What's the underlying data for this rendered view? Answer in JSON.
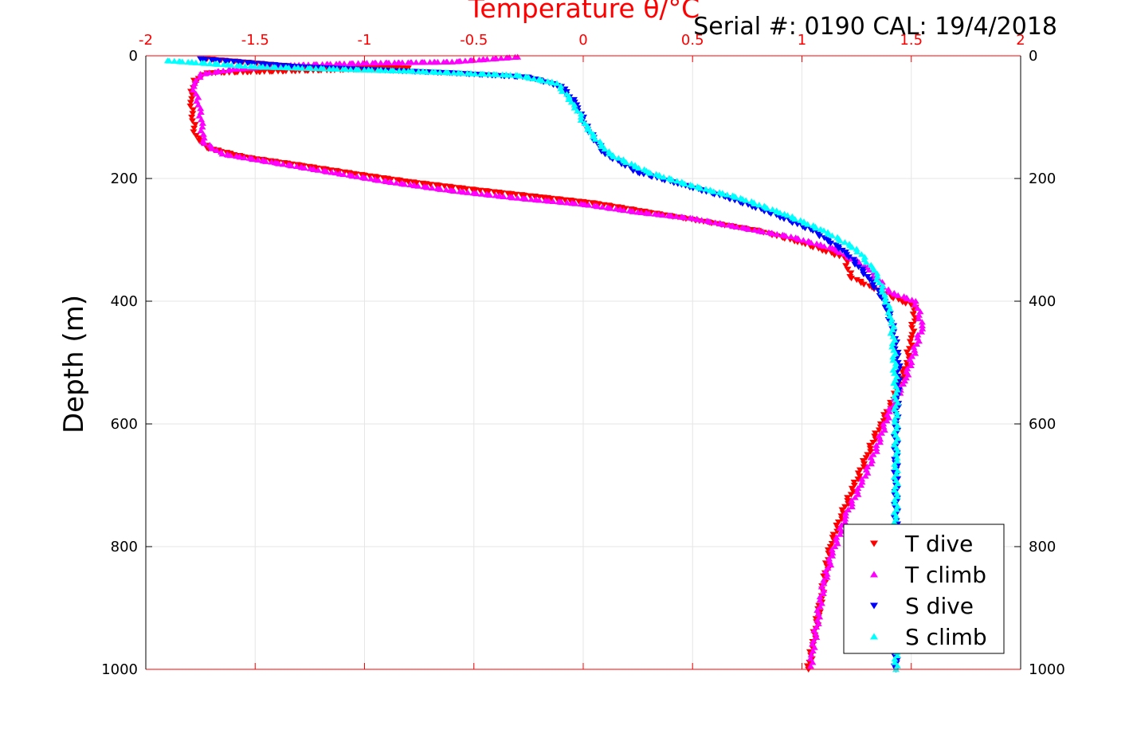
{
  "chart_data": {
    "type": "scatter",
    "title": "Serial #: 0190  CAL: 19/4/2018",
    "xlabel": "Temperature θ/°C",
    "ylabel": "Depth (m)",
    "xlim": [
      -2,
      2
    ],
    "ylim": [
      0,
      1000
    ],
    "y_reversed": true,
    "x_axis_position": "top",
    "grid": true,
    "legend_position": "bottom-right",
    "x_ticks": [
      "-2",
      "-1.5",
      "-1",
      "-0.5",
      "0",
      "0.5",
      "1",
      "1.5",
      "2"
    ],
    "y_ticks": [
      "0",
      "200",
      "400",
      "600",
      "800",
      "1000"
    ],
    "colors": {
      "x_axis": "#ff0000",
      "grid": "#e6e6e6"
    },
    "series": [
      {
        "name": "T dive",
        "marker": "triangle-down",
        "color": "#ff0000",
        "points": [
          [
            -1.72,
            5
          ],
          [
            -1.3,
            18
          ],
          [
            -0.8,
            20
          ],
          [
            -1.0,
            22
          ],
          [
            -1.72,
            28
          ],
          [
            -1.78,
            40
          ],
          [
            -1.79,
            70
          ],
          [
            -1.79,
            100
          ],
          [
            -1.77,
            130
          ],
          [
            -1.72,
            150
          ],
          [
            -1.55,
            165
          ],
          [
            -1.3,
            178
          ],
          [
            -1.05,
            192
          ],
          [
            -0.8,
            205
          ],
          [
            -0.5,
            218
          ],
          [
            -0.2,
            230
          ],
          [
            0.05,
            240
          ],
          [
            0.3,
            255
          ],
          [
            0.55,
            270
          ],
          [
            0.8,
            285
          ],
          [
            1.0,
            305
          ],
          [
            1.2,
            330
          ],
          [
            1.22,
            360
          ],
          [
            1.33,
            380
          ],
          [
            1.52,
            410
          ],
          [
            1.5,
            460
          ],
          [
            1.48,
            500
          ],
          [
            1.42,
            560
          ],
          [
            1.36,
            600
          ],
          [
            1.3,
            650
          ],
          [
            1.24,
            700
          ],
          [
            1.18,
            750
          ],
          [
            1.13,
            800
          ],
          [
            1.09,
            880
          ],
          [
            1.05,
            960
          ],
          [
            1.03,
            1000
          ]
        ]
      },
      {
        "name": "T climb",
        "marker": "triangle-up",
        "color": "#ff00ff",
        "points": [
          [
            -0.3,
            2
          ],
          [
            -0.6,
            10
          ],
          [
            -1.0,
            12
          ],
          [
            -1.3,
            15
          ],
          [
            -1.6,
            22
          ],
          [
            -1.75,
            30
          ],
          [
            -1.78,
            50
          ],
          [
            -1.76,
            80
          ],
          [
            -1.74,
            110
          ],
          [
            -1.74,
            140
          ],
          [
            -1.65,
            160
          ],
          [
            -1.4,
            175
          ],
          [
            -1.15,
            190
          ],
          [
            -0.9,
            205
          ],
          [
            -0.6,
            220
          ],
          [
            -0.3,
            232
          ],
          [
            0.0,
            242
          ],
          [
            0.25,
            255
          ],
          [
            0.5,
            265
          ],
          [
            0.75,
            282
          ],
          [
            0.95,
            295
          ],
          [
            1.15,
            315
          ],
          [
            1.3,
            345
          ],
          [
            1.4,
            385
          ],
          [
            1.52,
            400
          ],
          [
            1.55,
            440
          ],
          [
            1.47,
            530
          ],
          [
            1.4,
            580
          ],
          [
            1.34,
            640
          ],
          [
            1.27,
            700
          ],
          [
            1.2,
            750
          ],
          [
            1.14,
            810
          ],
          [
            1.1,
            860
          ],
          [
            1.07,
            920
          ],
          [
            1.05,
            970
          ],
          [
            1.04,
            995
          ]
        ]
      },
      {
        "name": "S dive",
        "marker": "triangle-down",
        "color": "#0000ff",
        "points": [
          [
            -1.75,
            5
          ],
          [
            -1.3,
            18
          ],
          [
            -0.6,
            28
          ],
          [
            -0.25,
            35
          ],
          [
            -0.1,
            50
          ],
          [
            -0.03,
            80
          ],
          [
            0.02,
            120
          ],
          [
            0.1,
            160
          ],
          [
            0.25,
            190
          ],
          [
            0.45,
            210
          ],
          [
            0.65,
            230
          ],
          [
            0.85,
            255
          ],
          [
            1.05,
            285
          ],
          [
            1.2,
            320
          ],
          [
            1.3,
            360
          ],
          [
            1.38,
            400
          ],
          [
            1.42,
            450
          ],
          [
            1.44,
            500
          ],
          [
            1.44,
            550
          ],
          [
            1.43,
            600
          ],
          [
            1.43,
            700
          ],
          [
            1.43,
            800
          ],
          [
            1.43,
            900
          ],
          [
            1.43,
            1000
          ]
        ]
      },
      {
        "name": "S climb",
        "marker": "triangle-up",
        "color": "#00ffff",
        "points": [
          [
            -1.9,
            8
          ],
          [
            -1.5,
            18
          ],
          [
            -0.8,
            25
          ],
          [
            -0.3,
            32
          ],
          [
            -0.12,
            45
          ],
          [
            -0.04,
            80
          ],
          [
            0.02,
            120
          ],
          [
            0.12,
            160
          ],
          [
            0.3,
            190
          ],
          [
            0.5,
            212
          ],
          [
            0.72,
            232
          ],
          [
            0.92,
            258
          ],
          [
            1.1,
            285
          ],
          [
            1.25,
            315
          ],
          [
            1.33,
            350
          ],
          [
            1.38,
            390
          ],
          [
            1.41,
            430
          ],
          [
            1.42,
            480
          ],
          [
            1.43,
            550
          ],
          [
            1.43,
            650
          ],
          [
            1.43,
            750
          ],
          [
            1.43,
            850
          ],
          [
            1.43,
            950
          ],
          [
            1.43,
            1000
          ]
        ]
      }
    ]
  }
}
